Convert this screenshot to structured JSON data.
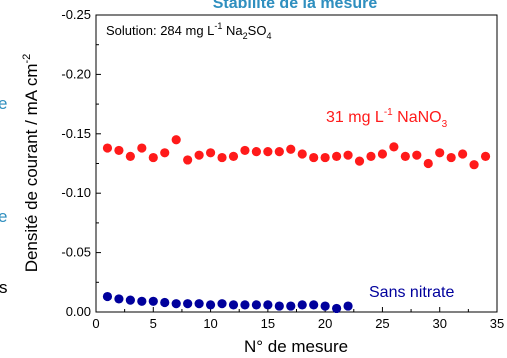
{
  "chart_data": {
    "type": "scatter",
    "title": "Stabilité de la mesure",
    "xlabel": "N° de mesure",
    "ylabel": "Densité de courant / mA cm",
    "ylabel_sup": "-2",
    "xlim": [
      0,
      35
    ],
    "ylim": [
      0,
      -0.25
    ],
    "y_inverted": true,
    "xticks": [
      "0",
      "5",
      "10",
      "15",
      "20",
      "25",
      "30",
      "35"
    ],
    "yticks": [
      "0.00",
      "-0.05",
      "-0.10",
      "-0.15",
      "-0.20",
      "-0.25"
    ],
    "xtick_values": [
      0,
      5,
      10,
      15,
      20,
      25,
      30,
      35
    ],
    "ytick_values": [
      0,
      -0.05,
      -0.1,
      -0.15,
      -0.2,
      -0.25
    ],
    "annotation": {
      "prefix": "Solution:  284 mg L",
      "sup": "-1",
      "mid": " Na",
      "sub1": "2",
      "mid2": "SO",
      "sub2": "4"
    },
    "series": [
      {
        "name": "31 mg L-1 NaNO3",
        "color": "#ff1a1a",
        "label_parts": {
          "a": "31 mg L",
          "sup": "-1",
          "b": " NaNO",
          "sub": "3"
        },
        "x": [
          1,
          2,
          3,
          4,
          5,
          6,
          7,
          8,
          9,
          10,
          11,
          12,
          13,
          14,
          15,
          16,
          17,
          18,
          19,
          20,
          21,
          22,
          23,
          24,
          25,
          26,
          27,
          28,
          29,
          30,
          31,
          32,
          33,
          34
        ],
        "y": [
          -0.138,
          -0.136,
          -0.131,
          -0.138,
          -0.13,
          -0.134,
          -0.145,
          -0.128,
          -0.132,
          -0.134,
          -0.13,
          -0.131,
          -0.136,
          -0.135,
          -0.135,
          -0.135,
          -0.137,
          -0.133,
          -0.13,
          -0.13,
          -0.131,
          -0.132,
          -0.127,
          -0.131,
          -0.133,
          -0.139,
          -0.131,
          -0.132,
          -0.125,
          -0.134,
          -0.13,
          -0.133,
          -0.124,
          -0.131
        ]
      },
      {
        "name": "Sans nitrate",
        "color": "#00009c",
        "x": [
          1,
          2,
          3,
          4,
          5,
          6,
          7,
          8,
          9,
          10,
          11,
          12,
          13,
          14,
          15,
          16,
          17,
          18,
          19,
          20,
          21,
          22
        ],
        "y": [
          -0.013,
          -0.011,
          -0.01,
          -0.009,
          -0.009,
          -0.008,
          -0.007,
          -0.007,
          -0.007,
          -0.006,
          -0.007,
          -0.006,
          -0.006,
          -0.006,
          -0.006,
          -0.005,
          -0.005,
          -0.006,
          -0.006,
          -0.005,
          -0.003,
          -0.005
        ]
      }
    ],
    "left_edge_fragments": [
      {
        "text": "e",
        "color": "#2f8fbf"
      },
      {
        "text": "e",
        "color": "#2f8fbf"
      },
      {
        "text": "s",
        "color": "#000000"
      }
    ]
  }
}
